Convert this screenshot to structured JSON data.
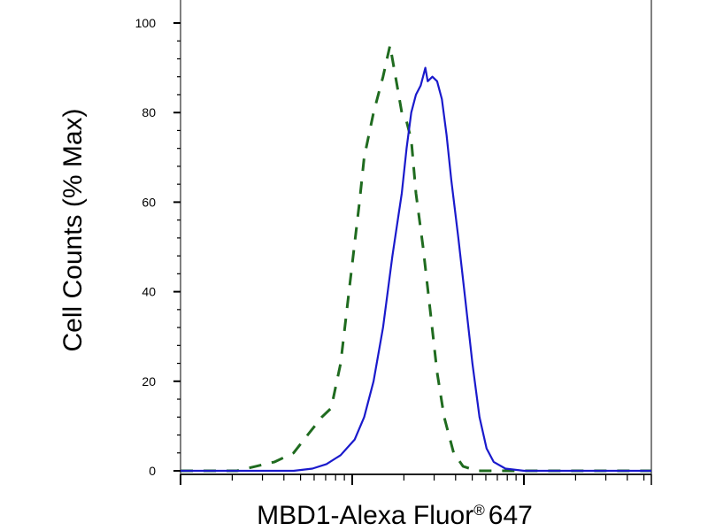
{
  "chart_data": {
    "type": "line",
    "xlabel": "MBD1-Alexa Fluor",
    "xlabel_mark": "®",
    "xlabel_tail": "647",
    "ylabel": "Cell Counts (% Max)",
    "x_scale": "log",
    "x_tick_labels": [],
    "ylim": [
      0,
      100
    ],
    "y_ticks": [
      "0",
      "20",
      "40",
      "60",
      "80",
      "100"
    ],
    "grid": false,
    "legend": "none",
    "series": [
      {
        "style": "dashed",
        "color": "#1f6b1f",
        "points": [
          [
            0.0,
            0
          ],
          [
            0.04,
            0
          ],
          [
            0.08,
            0
          ],
          [
            0.12,
            0
          ],
          [
            0.16,
            1
          ],
          [
            0.2,
            2
          ],
          [
            0.24,
            4
          ],
          [
            0.27,
            8
          ],
          [
            0.3,
            12
          ],
          [
            0.32,
            14
          ],
          [
            0.34,
            24
          ],
          [
            0.36,
            42
          ],
          [
            0.38,
            60
          ],
          [
            0.39,
            70
          ],
          [
            0.41,
            80
          ],
          [
            0.43,
            88
          ],
          [
            0.445,
            95
          ],
          [
            0.46,
            86
          ],
          [
            0.47,
            80
          ],
          [
            0.48,
            78
          ],
          [
            0.49,
            74
          ],
          [
            0.5,
            62
          ],
          [
            0.515,
            50
          ],
          [
            0.53,
            36
          ],
          [
            0.545,
            22
          ],
          [
            0.56,
            12
          ],
          [
            0.58,
            4
          ],
          [
            0.6,
            1
          ],
          [
            0.63,
            0
          ],
          [
            0.7,
            0
          ],
          [
            0.8,
            0
          ],
          [
            0.9,
            0
          ],
          [
            1.0,
            0
          ]
        ]
      },
      {
        "style": "solid",
        "color": "#1a1acc",
        "points": [
          [
            0.0,
            0
          ],
          [
            0.04,
            0
          ],
          [
            0.08,
            0
          ],
          [
            0.12,
            0
          ],
          [
            0.16,
            0
          ],
          [
            0.2,
            0
          ],
          [
            0.24,
            0
          ],
          [
            0.28,
            0.5
          ],
          [
            0.31,
            1.5
          ],
          [
            0.34,
            3.5
          ],
          [
            0.37,
            7
          ],
          [
            0.39,
            12
          ],
          [
            0.41,
            20
          ],
          [
            0.43,
            32
          ],
          [
            0.45,
            48
          ],
          [
            0.47,
            62
          ],
          [
            0.48,
            72
          ],
          [
            0.49,
            80
          ],
          [
            0.5,
            84
          ],
          [
            0.51,
            86
          ],
          [
            0.515,
            88
          ],
          [
            0.52,
            90
          ],
          [
            0.525,
            87
          ],
          [
            0.535,
            88
          ],
          [
            0.545,
            87
          ],
          [
            0.555,
            83
          ],
          [
            0.565,
            75
          ],
          [
            0.575,
            65
          ],
          [
            0.59,
            52
          ],
          [
            0.605,
            38
          ],
          [
            0.62,
            24
          ],
          [
            0.635,
            12
          ],
          [
            0.65,
            5
          ],
          [
            0.665,
            2
          ],
          [
            0.69,
            0.5
          ],
          [
            0.73,
            0
          ],
          [
            0.8,
            0
          ],
          [
            0.9,
            0
          ],
          [
            1.0,
            0
          ]
        ]
      }
    ]
  }
}
